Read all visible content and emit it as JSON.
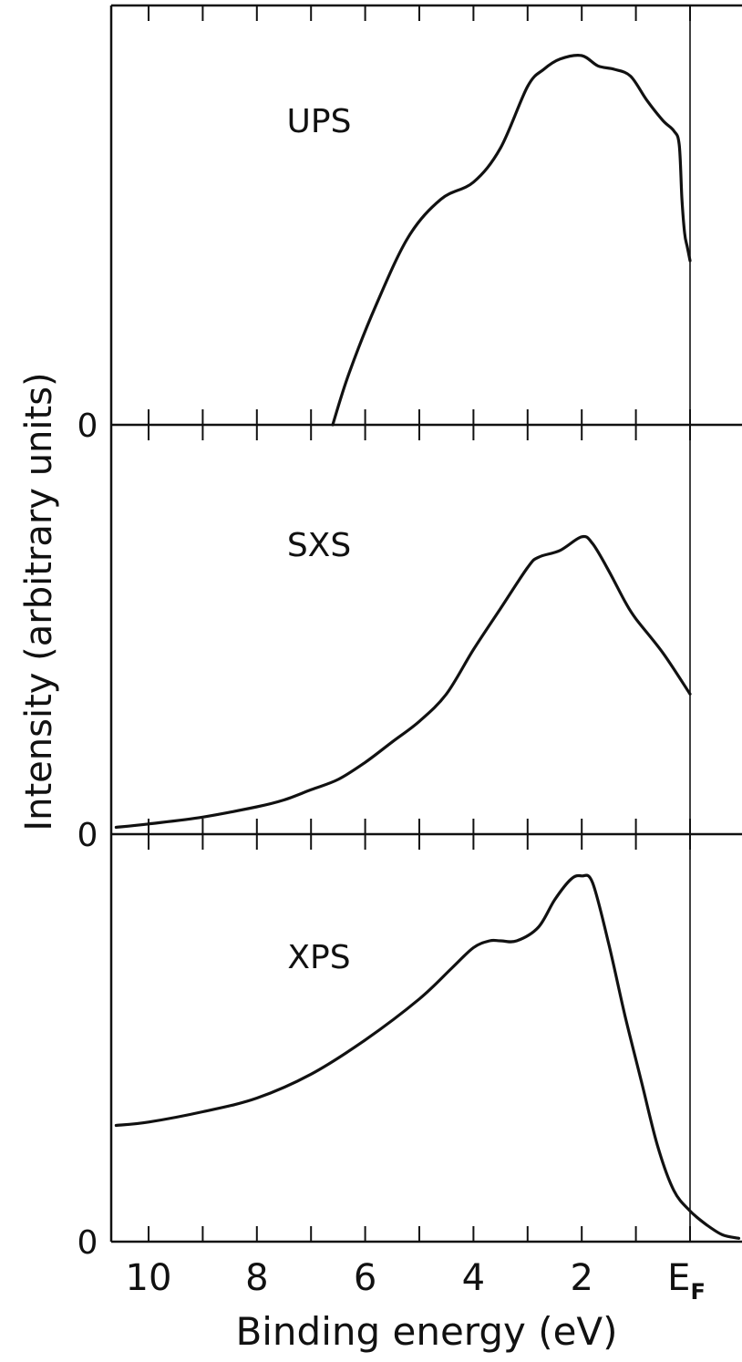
{
  "chart_data": {
    "type": "line",
    "title": "",
    "xlabel": "Binding energy (eV)",
    "ylabel": "Intensity (arbitrary units)",
    "x_reversed": true,
    "xlim": [
      10.6,
      -1.0
    ],
    "x_ticks": [
      {
        "value": 10,
        "label": "10"
      },
      {
        "value": 8,
        "label": "8"
      },
      {
        "value": 6,
        "label": "6"
      },
      {
        "value": 4,
        "label": "4"
      },
      {
        "value": 2,
        "label": "2"
      },
      {
        "value": 0,
        "label": "EF"
      }
    ],
    "fermi_level_marker": 0,
    "grid": false,
    "panels": [
      {
        "label": "UPS",
        "zero_label": "0",
        "ylim": [
          0,
          1.05
        ],
        "x": [
          6.6,
          6.3,
          5.8,
          5.2,
          4.6,
          4.0,
          3.5,
          3.0,
          2.7,
          2.4,
          2.0,
          1.7,
          1.4,
          1.1,
          0.8,
          0.5,
          0.3,
          0.2,
          0.15,
          0.1,
          0.05,
          0.0
        ],
        "values": [
          0.0,
          0.15,
          0.35,
          0.55,
          0.66,
          0.71,
          0.81,
          0.99,
          1.04,
          1.07,
          1.08,
          1.05,
          1.04,
          1.02,
          0.95,
          0.89,
          0.86,
          0.82,
          0.66,
          0.56,
          0.52,
          0.48
        ]
      },
      {
        "label": "SXS",
        "zero_label": "0",
        "ylim": [
          0,
          1.05
        ],
        "x": [
          10.6,
          10.0,
          9.0,
          8.0,
          7.5,
          7.0,
          6.5,
          6.0,
          5.5,
          5.0,
          4.5,
          4.0,
          3.5,
          3.0,
          2.8,
          2.4,
          2.0,
          1.8,
          1.5,
          1.2,
          1.0,
          0.5,
          0.0
        ],
        "values": [
          0.02,
          0.03,
          0.05,
          0.08,
          0.1,
          0.13,
          0.16,
          0.21,
          0.27,
          0.33,
          0.41,
          0.54,
          0.66,
          0.78,
          0.81,
          0.83,
          0.87,
          0.85,
          0.77,
          0.68,
          0.63,
          0.53,
          0.41
        ]
      },
      {
        "label": "XPS",
        "zero_label": "0",
        "ylim": [
          0,
          1.05
        ],
        "x": [
          10.6,
          10.0,
          9.0,
          8.0,
          7.0,
          6.0,
          5.0,
          4.4,
          4.0,
          3.7,
          3.5,
          3.2,
          2.8,
          2.5,
          2.2,
          2.0,
          1.8,
          1.5,
          1.2,
          0.9,
          0.6,
          0.3,
          0.0,
          -0.3,
          -0.6,
          -0.9
        ],
        "values": [
          0.34,
          0.35,
          0.38,
          0.42,
          0.49,
          0.59,
          0.71,
          0.8,
          0.86,
          0.88,
          0.88,
          0.88,
          0.92,
          1.0,
          1.06,
          1.07,
          1.05,
          0.87,
          0.66,
          0.47,
          0.28,
          0.15,
          0.09,
          0.05,
          0.02,
          0.01
        ]
      }
    ]
  }
}
